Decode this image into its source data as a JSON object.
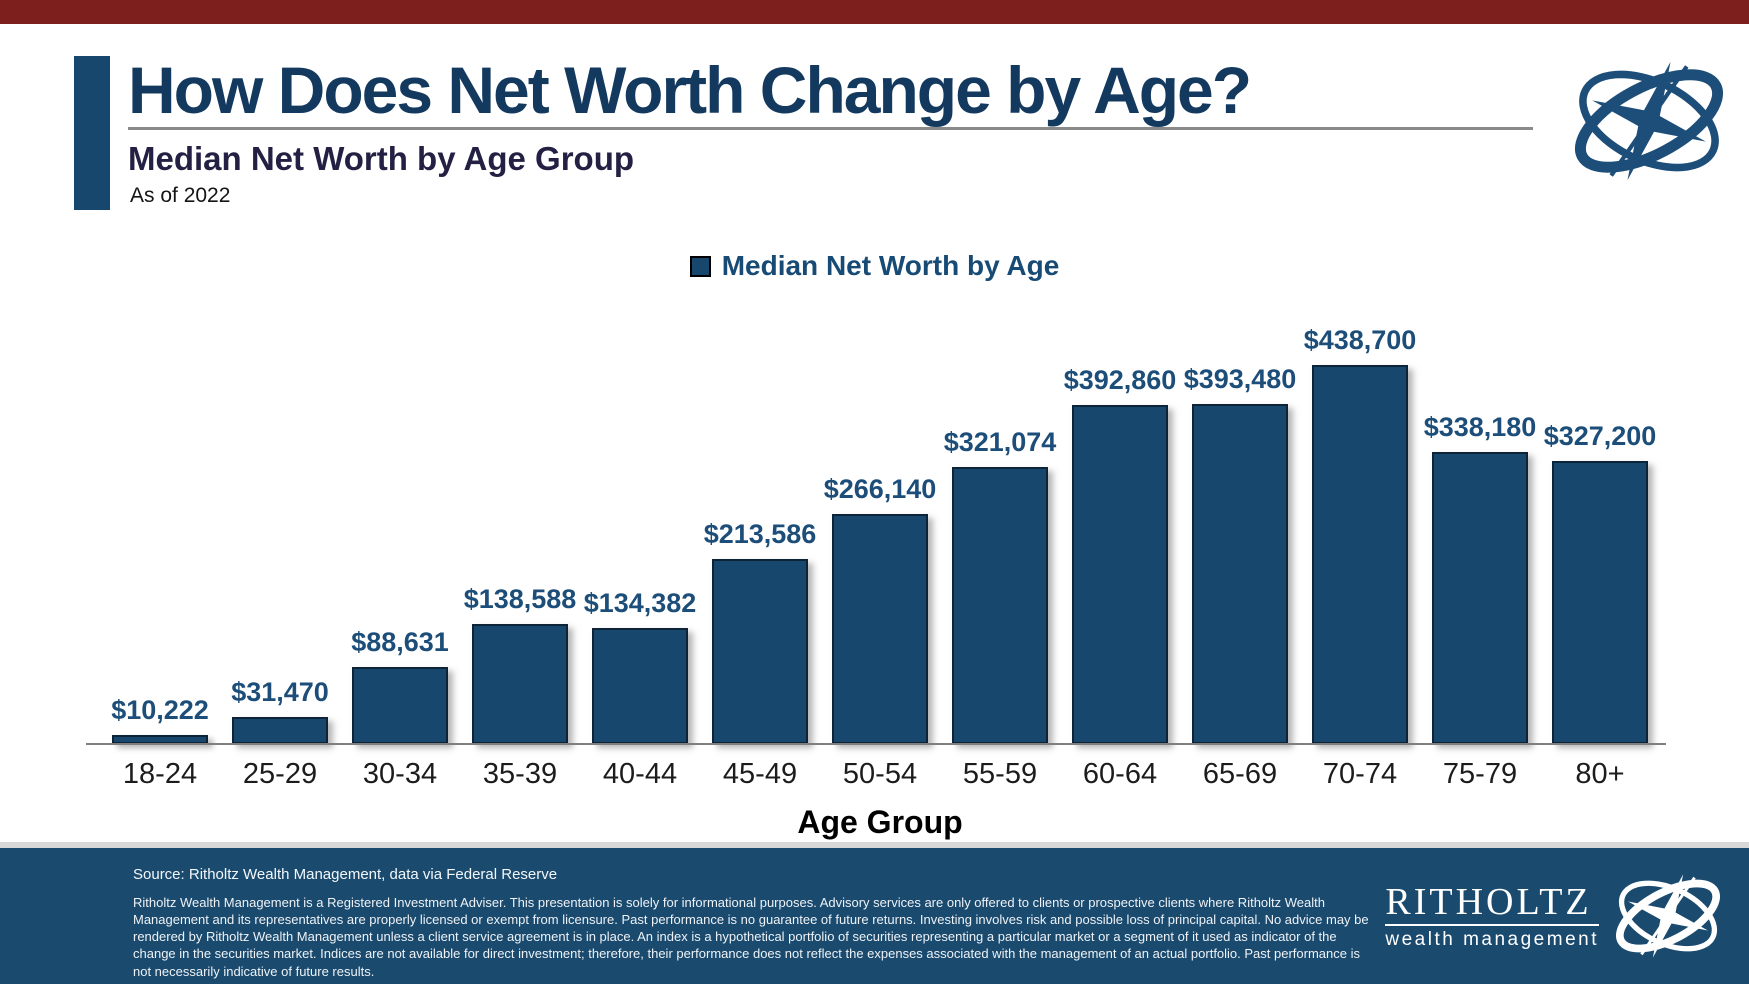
{
  "header": {
    "title": "How Does Net Worth Change by Age?",
    "subtitle": "Median Net Worth by Age Group",
    "as_of": "As of 2022"
  },
  "chart_data": {
    "type": "bar",
    "title": "Median Net Worth by Age Group",
    "subtitle": "As of 2022",
    "series_name": "Median Net Worth by Age",
    "categories": [
      "18-24",
      "25-29",
      "30-34",
      "35-39",
      "40-44",
      "45-49",
      "50-54",
      "55-59",
      "60-64",
      "65-69",
      "70-74",
      "75-79",
      "80+"
    ],
    "values": [
      10222,
      31470,
      88631,
      138588,
      134382,
      213586,
      266140,
      321074,
      392860,
      393480,
      438700,
      338180,
      327200
    ],
    "value_labels": [
      "$10,222",
      "$31,470",
      "$88,631",
      "$138,588",
      "$134,382",
      "$213,586",
      "$266,140",
      "$321,074",
      "$392,860",
      "$393,480",
      "$438,700",
      "$338,180",
      "$327,200"
    ],
    "xlabel": "Age Group",
    "ylabel": "",
    "ylim": [
      0,
      438700
    ],
    "grid": false,
    "legend_position": "top",
    "bar_color": "#17476D"
  },
  "footer": {
    "source": "Source: Ritholtz Wealth Management, data via Federal Reserve",
    "disclaimer": "Ritholtz Wealth Management is a Registered Investment Adviser. This presentation is solely for informational purposes. Advisory services are only offered to clients or prospective clients where Ritholtz Wealth Management and its representatives are properly licensed or exempt from licensure. Past performance is no guarantee of future returns. Investing involves risk and possible loss of principal capital. No advice may be rendered by Ritholtz Wealth Management unless a client service agreement is in place. An index is a hypothetical portfolio of securities representing a particular market or a segment of it used as indicator of the change in the securities market. Indices are not available for direct investment; therefore, their performance does not reflect the expenses associated with the management of an actual portfolio. Past performance is not necessarily indicative of future results.",
    "brand_name": "RITHOLTZ",
    "brand_subtitle": "wealth management"
  },
  "colors": {
    "top_bar_red": "#7D1F1C",
    "bar_navy": "#17476D",
    "title_navy": "#14395F",
    "footer_navy": "#1A4A6E",
    "value_label_navy": "#1D4E79"
  }
}
